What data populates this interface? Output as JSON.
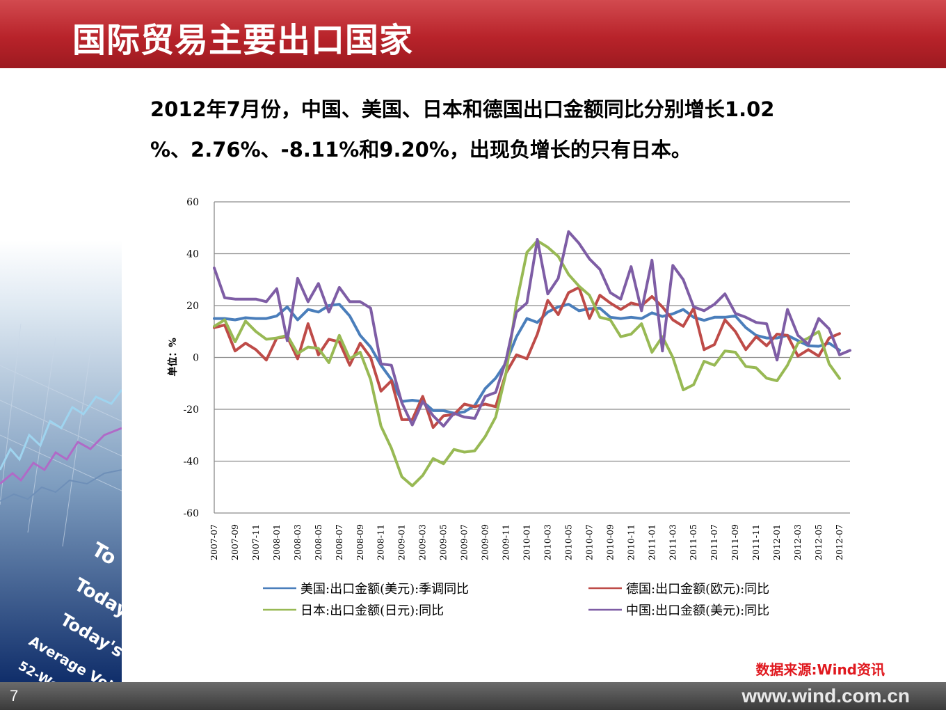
{
  "header": {
    "title": "国际贸易主要出口国家"
  },
  "summary": {
    "line1": "2012年7月份，中国、美国、日本和德国出口金额同比分别增长1.02",
    "line2": "%、2.76%、-8.11%和9.20%，出现负增长的只有日本。"
  },
  "chart_data": {
    "type": "line",
    "ylabel": "单位：%",
    "ylim": [
      -60,
      60
    ],
    "yticks": [
      60,
      40,
      20,
      0,
      -20,
      -40,
      -60
    ],
    "grid": true,
    "legend_position": "bottom",
    "x": [
      "2007-07",
      "2007-08",
      "2007-09",
      "2007-10",
      "2007-11",
      "2007-12",
      "2008-01",
      "2008-02",
      "2008-03",
      "2008-04",
      "2008-05",
      "2008-06",
      "2008-07",
      "2008-08",
      "2008-09",
      "2008-10",
      "2008-11",
      "2008-12",
      "2009-01",
      "2009-02",
      "2009-03",
      "2009-04",
      "2009-05",
      "2009-06",
      "2009-07",
      "2009-08",
      "2009-09",
      "2009-10",
      "2009-11",
      "2009-12",
      "2010-01",
      "2010-02",
      "2010-03",
      "2010-04",
      "2010-05",
      "2010-06",
      "2010-07",
      "2010-08",
      "2010-09",
      "2010-10",
      "2010-11",
      "2010-12",
      "2011-01",
      "2011-02",
      "2011-03",
      "2011-04",
      "2011-05",
      "2011-06",
      "2011-07",
      "2011-08",
      "2011-09",
      "2011-10",
      "2011-11",
      "2011-12",
      "2012-01",
      "2012-02",
      "2012-03",
      "2012-04",
      "2012-05",
      "2012-06",
      "2012-07",
      "2012-08"
    ],
    "xtick_labels": [
      "2007-07",
      "2007-09",
      "2007-11",
      "2008-01",
      "2008-03",
      "2008-05",
      "2008-07",
      "2008-09",
      "2008-11",
      "2009-01",
      "2009-03",
      "2009-05",
      "2009-07",
      "2009-09",
      "2009-11",
      "2010-01",
      "2010-03",
      "2010-05",
      "2010-07",
      "2010-09",
      "2010-11",
      "2011-01",
      "2011-03",
      "2011-05",
      "2011-07",
      "2011-09",
      "2011-11",
      "2012-01",
      "2012-03",
      "2012-05",
      "2012-07"
    ],
    "series": [
      {
        "name": "美国:出口金额(美元):季调同比",
        "color": "#4a7ebb",
        "values": [
          15,
          15,
          14.5,
          15.3,
          15,
          15,
          16,
          19.5,
          14.5,
          18.5,
          17.5,
          20,
          20.5,
          16,
          8.5,
          4,
          -3,
          -8.5,
          -17,
          -16.5,
          -17,
          -20.5,
          -20.5,
          -21.5,
          -21,
          -18.5,
          -12,
          -8,
          -2,
          8,
          15,
          13.5,
          17.5,
          19.5,
          20.5,
          18,
          18.8,
          19,
          15.5,
          15,
          15.5,
          15,
          17.2,
          15.8,
          16.8,
          18.5,
          15.5,
          14.3,
          15.5,
          15.5,
          16,
          11.5,
          8.5,
          7.5,
          7.5,
          8.5,
          6.5,
          4.5,
          4.3,
          5.5,
          2.8,
          null
        ]
      },
      {
        "name": "德国:出口金额(欧元):同比",
        "color": "#be4b48",
        "values": [
          11.5,
          12.5,
          2.5,
          5.5,
          3,
          -1,
          7.5,
          8,
          -0.5,
          13,
          1,
          7,
          6,
          -3,
          5.5,
          0,
          -13,
          -9,
          -24,
          -24,
          -15,
          -27,
          -22.5,
          -22,
          -18,
          -19,
          -18,
          -19,
          -6,
          1,
          -0.5,
          9,
          22,
          16.5,
          25,
          27,
          15,
          24,
          21,
          18.5,
          21,
          20,
          23.5,
          19.5,
          14.5,
          12,
          19,
          3,
          5,
          14.5,
          10,
          3,
          8,
          4.5,
          9,
          8.5,
          0.5,
          3,
          0.5,
          7.5,
          9.2,
          null
        ]
      },
      {
        "name": "日本:出口金额(日元):同比",
        "color": "#98b954",
        "values": [
          12,
          14.5,
          6,
          14,
          10,
          7,
          7.5,
          8.5,
          1.5,
          4,
          3.5,
          -2,
          8.5,
          -0.5,
          2,
          -8.5,
          -26.5,
          -35,
          -46,
          -49.5,
          -45.5,
          -39,
          -41,
          -35.5,
          -36.5,
          -36,
          -30.5,
          -23,
          -6,
          21,
          40.5,
          45,
          42.5,
          39,
          32,
          27.5,
          24,
          15.5,
          14.5,
          8,
          9,
          13,
          2,
          8,
          0,
          -12.5,
          -10.5,
          -1.5,
          -3,
          2.5,
          2,
          -3.5,
          -4,
          -8,
          -9,
          -3,
          5.5,
          7.5,
          10,
          -2.5,
          -8.11,
          null
        ]
      },
      {
        "name": "中国:出口金额(美元):同比",
        "color": "#7e5da5",
        "values": [
          34.5,
          23,
          22.5,
          22.5,
          22.5,
          21.5,
          26.5,
          6.5,
          30.5,
          21.5,
          28.5,
          17.5,
          27,
          21.5,
          21.5,
          19,
          -2.5,
          -3,
          -17.5,
          -26,
          -17,
          -22.5,
          -26.5,
          -21.5,
          -23,
          -23.5,
          -15,
          -13.5,
          -1,
          17.5,
          21,
          45.5,
          24.5,
          30.5,
          48.5,
          44,
          38,
          34,
          25,
          22.5,
          35,
          18,
          37.5,
          2.5,
          35.5,
          30,
          19.5,
          18,
          20.5,
          24.5,
          17,
          15.5,
          13.5,
          13,
          -1,
          18.5,
          8.5,
          5,
          15,
          11,
          1.02,
          2.7
        ]
      }
    ]
  },
  "source": "数据来源:Wind资讯",
  "footer": {
    "page_number": "7",
    "site": "www.wind.com.cn"
  }
}
